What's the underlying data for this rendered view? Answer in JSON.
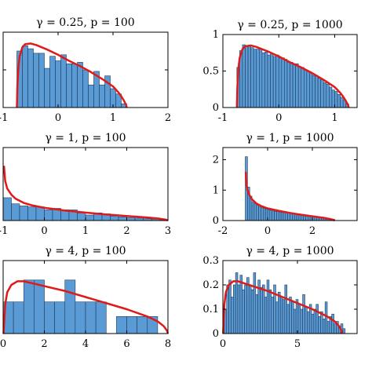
{
  "colors": {
    "bar": "#5b9bd5",
    "bar_edge": "#1f3b5a",
    "curve": "#e01919"
  },
  "chart_data": [
    {
      "type": "bar",
      "title": "γ = 0.25, p = 100",
      "xlim": [
        -1,
        2
      ],
      "ylim": [
        0,
        1
      ],
      "xticks": [
        -1,
        0,
        1,
        2
      ],
      "xticklabels": [
        "-1",
        "0",
        "1",
        "2"
      ],
      "yticks": [
        0.5
      ],
      "yticklabels": [
        ""
      ],
      "bin_width": 0.1,
      "bins_start": [
        -0.75,
        -0.65,
        -0.55,
        -0.45,
        -0.35,
        -0.25,
        -0.15,
        -0.05,
        0.05,
        0.15,
        0.25,
        0.35,
        0.45,
        0.55,
        0.65,
        0.75,
        0.85,
        0.95,
        1.05,
        1.15
      ],
      "values": [
        0.75,
        0.82,
        0.78,
        0.72,
        0.72,
        0.52,
        0.68,
        0.62,
        0.7,
        0.58,
        0.58,
        0.6,
        0.5,
        0.3,
        0.48,
        0.3,
        0.42,
        0.25,
        0.18,
        0.05
      ],
      "density": {
        "x": [
          -0.75,
          -0.74,
          -0.72,
          -0.7,
          -0.65,
          -0.6,
          -0.5,
          -0.4,
          -0.2,
          0,
          0.2,
          0.4,
          0.6,
          0.8,
          1.0,
          1.1,
          1.15,
          1.2,
          1.24,
          1.25
        ],
        "y": [
          0,
          0.3,
          0.55,
          0.68,
          0.8,
          0.84,
          0.85,
          0.83,
          0.77,
          0.7,
          0.62,
          0.55,
          0.47,
          0.38,
          0.28,
          0.2,
          0.15,
          0.09,
          0.03,
          0
        ]
      }
    },
    {
      "type": "bar",
      "title": "γ = 0.25, p = 1000",
      "xlim": [
        -1,
        1.4
      ],
      "ylim": [
        0,
        1
      ],
      "xticks": [
        -1,
        0,
        1
      ],
      "xticklabels": [
        "-1",
        "0",
        "1"
      ],
      "yticks": [
        0,
        0.5,
        1
      ],
      "yticklabels": [
        "0",
        "0.5",
        "1"
      ],
      "bin_width": 0.05,
      "bins_start": [
        -0.75,
        -0.7,
        -0.65,
        -0.6,
        -0.55,
        -0.5,
        -0.45,
        -0.4,
        -0.35,
        -0.3,
        -0.25,
        -0.2,
        -0.15,
        -0.1,
        -0.05,
        0,
        0.05,
        0.1,
        0.15,
        0.2,
        0.25,
        0.3,
        0.35,
        0.4,
        0.45,
        0.5,
        0.55,
        0.6,
        0.65,
        0.7,
        0.75,
        0.8,
        0.85,
        0.9,
        0.95,
        1.0,
        1.05,
        1.1,
        1.15,
        1.2
      ],
      "values": [
        0.55,
        0.78,
        0.86,
        0.85,
        0.85,
        0.82,
        0.8,
        0.8,
        0.8,
        0.75,
        0.76,
        0.72,
        0.74,
        0.7,
        0.72,
        0.68,
        0.68,
        0.66,
        0.62,
        0.62,
        0.6,
        0.6,
        0.56,
        0.55,
        0.52,
        0.5,
        0.48,
        0.44,
        0.44,
        0.4,
        0.38,
        0.34,
        0.32,
        0.28,
        0.24,
        0.22,
        0.18,
        0.14,
        0.1,
        0.05
      ],
      "density": {
        "x": [
          -0.75,
          -0.74,
          -0.72,
          -0.7,
          -0.65,
          -0.6,
          -0.5,
          -0.4,
          -0.2,
          0,
          0.2,
          0.4,
          0.6,
          0.8,
          1.0,
          1.1,
          1.15,
          1.2,
          1.24,
          1.25
        ],
        "y": [
          0,
          0.3,
          0.55,
          0.68,
          0.8,
          0.84,
          0.85,
          0.83,
          0.77,
          0.7,
          0.62,
          0.55,
          0.47,
          0.38,
          0.28,
          0.2,
          0.15,
          0.09,
          0.03,
          0
        ]
      }
    },
    {
      "type": "bar",
      "title": "γ = 1, p = 100",
      "xlim": [
        -1,
        3
      ],
      "ylim": [
        0,
        2.4
      ],
      "xticks": [
        -1,
        0,
        1,
        2,
        3
      ],
      "xticklabels": [
        "-1",
        "0",
        "1",
        "2",
        "3"
      ],
      "yticks": [],
      "yticklabels": [],
      "bin_width": 0.2,
      "bins_start": [
        -1.0,
        -0.8,
        -0.6,
        -0.4,
        -0.2,
        0,
        0.2,
        0.4,
        0.6,
        0.8,
        1.0,
        1.2,
        1.4,
        1.6,
        1.8,
        2.0,
        2.2,
        2.4,
        2.6,
        2.8
      ],
      "values": [
        0.75,
        0.55,
        0.48,
        0.45,
        0.45,
        0.35,
        0.4,
        0.35,
        0.35,
        0.25,
        0.18,
        0.25,
        0.22,
        0.15,
        0.12,
        0.1,
        0.08,
        0.06,
        0.05,
        0.03
      ],
      "density": {
        "x": [
          -0.98,
          -0.95,
          -0.9,
          -0.8,
          -0.7,
          -0.5,
          -0.3,
          0,
          0.5,
          1.0,
          1.5,
          2.0,
          2.5,
          2.8,
          2.95,
          3.0
        ],
        "y": [
          1.8,
          1.3,
          1.05,
          0.85,
          0.72,
          0.58,
          0.5,
          0.42,
          0.33,
          0.26,
          0.2,
          0.15,
          0.1,
          0.06,
          0.03,
          0
        ]
      }
    },
    {
      "type": "bar",
      "title": "γ = 1, p = 1000",
      "xlim": [
        -2,
        4
      ],
      "ylim": [
        0,
        2.4
      ],
      "xticks": [
        -2,
        0,
        2
      ],
      "xticklabels": [
        "-2",
        "0",
        "2"
      ],
      "yticks": [
        0,
        1,
        2
      ],
      "yticklabels": [
        "0",
        "1",
        "2"
      ],
      "bin_width": 0.1,
      "bins_start": [
        -1.0,
        -0.9,
        -0.8,
        -0.7,
        -0.6,
        -0.5,
        -0.4,
        -0.3,
        -0.2,
        -0.1,
        0,
        0.1,
        0.2,
        0.3,
        0.4,
        0.5,
        0.6,
        0.7,
        0.8,
        0.9,
        1.0,
        1.1,
        1.2,
        1.3,
        1.4,
        1.5,
        1.6,
        1.7,
        1.8,
        1.9,
        2.0,
        2.1,
        2.2,
        2.3,
        2.4,
        2.5,
        2.6,
        2.7,
        2.8,
        2.9
      ],
      "values": [
        2.1,
        1.1,
        0.8,
        0.6,
        0.55,
        0.5,
        0.45,
        0.42,
        0.4,
        0.38,
        0.36,
        0.34,
        0.32,
        0.3,
        0.3,
        0.28,
        0.27,
        0.26,
        0.25,
        0.24,
        0.23,
        0.22,
        0.21,
        0.2,
        0.19,
        0.18,
        0.17,
        0.16,
        0.15,
        0.14,
        0.13,
        0.12,
        0.11,
        0.1,
        0.09,
        0.08,
        0.07,
        0.06,
        0.05,
        0.04
      ],
      "density": {
        "x": [
          -0.98,
          -0.95,
          -0.9,
          -0.8,
          -0.7,
          -0.5,
          -0.3,
          0,
          0.5,
          1.0,
          1.5,
          2.0,
          2.5,
          2.8,
          2.95,
          3.0
        ],
        "y": [
          1.6,
          1.2,
          1.0,
          0.82,
          0.7,
          0.56,
          0.48,
          0.4,
          0.32,
          0.25,
          0.19,
          0.14,
          0.09,
          0.05,
          0.02,
          0
        ]
      }
    },
    {
      "type": "bar",
      "title": "γ = 4, p = 100",
      "xlim": [
        0,
        8
      ],
      "ylim": [
        0,
        0.3
      ],
      "xticks": [
        0,
        2,
        4,
        6,
        8
      ],
      "xticklabels": [
        "0",
        "2",
        "4",
        "6",
        "8"
      ],
      "yticks": [],
      "yticklabels": [],
      "bin_width": 0.5,
      "bins_start": [
        0.0,
        0.5,
        1.0,
        1.5,
        2.0,
        2.5,
        3.0,
        3.5,
        4.0,
        4.5,
        5.0,
        5.5,
        6.0,
        6.5,
        7.0
      ],
      "values": [
        0.13,
        0.13,
        0.22,
        0.22,
        0.13,
        0.13,
        0.22,
        0.13,
        0.13,
        0.13,
        0.0,
        0.07,
        0.07,
        0.07,
        0.07
      ],
      "density": {
        "x": [
          0.02,
          0.1,
          0.2,
          0.4,
          0.7,
          1.0,
          1.5,
          2.0,
          3.0,
          4.0,
          5.0,
          6.0,
          7.0,
          7.5,
          7.8,
          7.95,
          8.0
        ],
        "y": [
          0.0,
          0.12,
          0.17,
          0.2,
          0.215,
          0.215,
          0.205,
          0.195,
          0.175,
          0.15,
          0.125,
          0.1,
          0.07,
          0.05,
          0.03,
          0.012,
          0
        ]
      }
    },
    {
      "type": "bar",
      "title": "γ = 4, p = 1000",
      "xlim": [
        0,
        9
      ],
      "ylim": [
        0,
        0.3
      ],
      "xticks": [
        0,
        5
      ],
      "xticklabels": [
        "0",
        "5"
      ],
      "yticks": [
        0,
        0.1,
        0.2,
        0.3
      ],
      "yticklabels": [
        "0",
        "0.1",
        "0.2",
        "0.3"
      ],
      "bin_width": 0.15,
      "bins_start": [
        0.1,
        0.25,
        0.4,
        0.55,
        0.7,
        0.85,
        1.0,
        1.15,
        1.3,
        1.45,
        1.6,
        1.75,
        1.9,
        2.05,
        2.2,
        2.35,
        2.5,
        2.65,
        2.8,
        2.95,
        3.1,
        3.25,
        3.4,
        3.55,
        3.7,
        3.85,
        4.0,
        4.15,
        4.3,
        4.45,
        4.6,
        4.75,
        4.9,
        5.05,
        5.2,
        5.35,
        5.5,
        5.65,
        5.8,
        5.95,
        6.1,
        6.25,
        6.4,
        6.55,
        6.7,
        6.85,
        7.0,
        7.15,
        7.3,
        7.45,
        7.6,
        7.75,
        7.9,
        8.05
      ],
      "values": [
        0.1,
        0.2,
        0.22,
        0.15,
        0.2,
        0.25,
        0.2,
        0.24,
        0.18,
        0.2,
        0.23,
        0.2,
        0.18,
        0.25,
        0.16,
        0.22,
        0.19,
        0.2,
        0.15,
        0.22,
        0.18,
        0.15,
        0.2,
        0.13,
        0.17,
        0.15,
        0.14,
        0.2,
        0.12,
        0.15,
        0.13,
        0.1,
        0.14,
        0.12,
        0.1,
        0.16,
        0.11,
        0.09,
        0.12,
        0.08,
        0.1,
        0.12,
        0.07,
        0.09,
        0.06,
        0.13,
        0.05,
        0.07,
        0.08,
        0.04,
        0.05,
        0.03,
        0.04,
        0.02
      ],
      "density": {
        "x": [
          0.02,
          0.1,
          0.2,
          0.4,
          0.7,
          1.0,
          1.5,
          2.0,
          3.0,
          4.0,
          5.0,
          6.0,
          7.0,
          7.5,
          7.8,
          7.95,
          8.0
        ],
        "y": [
          0.0,
          0.12,
          0.17,
          0.2,
          0.215,
          0.215,
          0.205,
          0.195,
          0.175,
          0.15,
          0.125,
          0.1,
          0.07,
          0.05,
          0.03,
          0.012,
          0
        ]
      }
    }
  ]
}
